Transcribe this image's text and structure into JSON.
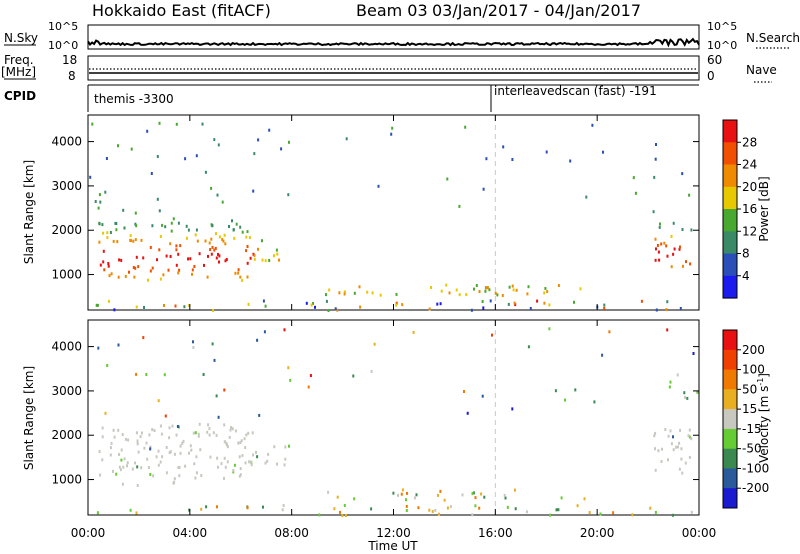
{
  "header": {
    "title": "Hokkaido East (fitACF)",
    "beam": "Beam 03",
    "dates": "03/Jan/2017 - 04/Jan/2017"
  },
  "top_panels": {
    "nsky_label": "N.Sky",
    "nsky_ticks": [
      "10^5",
      "10^0"
    ],
    "nsearch_label": "N.Search",
    "nsearch_ticks": [
      "10^5",
      "10^0"
    ],
    "freq_label": "Freq.",
    "freq_unit": "[MHz]",
    "freq_ticks": [
      "18",
      "8"
    ],
    "nave_label": "Nave",
    "nave_ticks": [
      "60",
      "0"
    ],
    "cpid_label": "CPID",
    "cpid_segments": [
      "themis -3300",
      "interleavedscan (fast) -191"
    ]
  },
  "time_axis": {
    "label": "Time UT",
    "ticks": [
      "00:00",
      "04:00",
      "08:00",
      "12:00",
      "16:00",
      "20:00",
      "00:00"
    ]
  },
  "chart_data": [
    {
      "type": "heatmap",
      "name": "power",
      "ylabel": "Slant Range [km]",
      "yticks": [
        "1000",
        "2000",
        "3000",
        "4000"
      ],
      "ylim": [
        200,
        4600
      ],
      "xlim": [
        0,
        24
      ],
      "colorbar_label": "Power [dB]",
      "colorbar_ticks": [
        "4",
        "8",
        "12",
        "16",
        "20",
        "24",
        "28"
      ],
      "colorbar_range": [
        0,
        32
      ],
      "colors": [
        "#1b1bf0",
        "#2a4fb8",
        "#3a8a68",
        "#48a830",
        "#e8c800",
        "#f08a00",
        "#f05000",
        "#e81010"
      ],
      "regions": [
        {
          "t": [
            0.4,
            6.5
          ],
          "r": [
            900,
            2300
          ],
          "level": "high"
        },
        {
          "t": [
            6.3,
            8.0
          ],
          "r": [
            1300,
            1800
          ],
          "level": "mid"
        },
        {
          "t": [
            9.3,
            19.5
          ],
          "r": [
            550,
            800
          ],
          "level": "mid"
        },
        {
          "t": [
            0.3,
            23.7
          ],
          "r": [
            220,
            450
          ],
          "level": "mixed"
        },
        {
          "t": [
            22.2,
            23.7
          ],
          "r": [
            1100,
            2200
          ],
          "level": "high"
        }
      ],
      "gridlines_vertical": [
        16.0
      ]
    },
    {
      "type": "heatmap",
      "name": "velocity",
      "ylabel": "Slant Range [km]",
      "yticks": [
        "1000",
        "2000",
        "3000",
        "4000"
      ],
      "ylim": [
        200,
        4600
      ],
      "xlim": [
        0,
        24
      ],
      "colorbar_label": "Velocity [m s^-1]",
      "colorbar_ticks": [
        "200",
        "100",
        "50",
        "15",
        "-15",
        "-50",
        "-100",
        "-200"
      ],
      "colors": [
        "#1a1ad0",
        "#2a5a9a",
        "#3a8a50",
        "#66cc33",
        "#c8c8c0",
        "#e8b020",
        "#f07a00",
        "#f04000",
        "#e81010"
      ],
      "regions": [
        {
          "t": [
            0.4,
            6.5
          ],
          "r": [
            900,
            2300
          ],
          "level": "ground"
        },
        {
          "t": [
            6.3,
            8.0
          ],
          "r": [
            1300,
            1800
          ],
          "level": "ground"
        },
        {
          "t": [
            9.3,
            19.5
          ],
          "r": [
            550,
            800
          ],
          "level": "mixed"
        },
        {
          "t": [
            0.3,
            23.7
          ],
          "r": [
            220,
            450
          ],
          "level": "mixed"
        },
        {
          "t": [
            22.2,
            23.7
          ],
          "r": [
            1100,
            2200
          ],
          "level": "ground"
        }
      ],
      "gridlines_vertical": [
        16.0
      ]
    }
  ]
}
